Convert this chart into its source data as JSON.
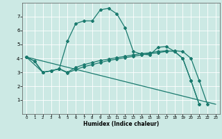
{
  "title": "",
  "xlabel": "Humidex (Indice chaleur)",
  "bg_color": "#cce9e4",
  "grid_color": "#ffffff",
  "line_color": "#1a7a6e",
  "xlim": [
    -0.5,
    23.5
  ],
  "ylim": [
    0,
    8
  ],
  "xticks": [
    0,
    1,
    2,
    3,
    4,
    5,
    6,
    7,
    8,
    9,
    10,
    11,
    12,
    13,
    14,
    15,
    16,
    17,
    18,
    19,
    20,
    21,
    22,
    23
  ],
  "yticks": [
    1,
    2,
    3,
    4,
    5,
    6,
    7
  ],
  "series1_x": [
    0,
    1,
    2,
    3,
    4,
    5,
    6,
    7,
    8,
    9,
    10,
    11,
    12,
    13,
    14,
    15,
    16,
    17,
    18,
    19,
    20,
    21,
    22,
    23
  ],
  "series1_y": [
    4.1,
    3.8,
    3.0,
    3.1,
    3.25,
    5.25,
    6.5,
    6.7,
    6.7,
    7.5,
    7.6,
    7.2,
    6.2,
    4.5,
    4.3,
    4.25,
    4.8,
    4.85,
    4.5,
    4.0,
    2.4,
    0.7,
    null,
    null
  ],
  "series2_x": [
    0,
    1,
    2,
    3,
    4,
    5,
    6,
    7,
    8,
    9,
    10,
    11,
    12,
    13,
    14,
    15,
    16,
    17,
    18,
    19,
    20,
    21,
    22,
    23
  ],
  "series2_y": [
    4.1,
    3.8,
    3.0,
    3.1,
    3.25,
    3.0,
    3.35,
    3.55,
    3.7,
    3.85,
    3.95,
    4.05,
    4.15,
    4.25,
    4.35,
    4.4,
    4.5,
    4.55,
    4.5,
    4.0,
    2.4,
    0.7,
    null,
    null
  ],
  "series3_x": [
    0,
    2,
    3,
    4,
    5,
    6,
    7,
    8,
    9,
    10,
    11,
    12,
    13,
    14,
    15,
    16,
    17,
    18,
    19,
    20,
    21,
    22,
    23
  ],
  "series3_y": [
    4.1,
    3.0,
    3.1,
    3.25,
    2.95,
    3.2,
    3.4,
    3.55,
    3.7,
    3.85,
    3.95,
    4.05,
    4.15,
    4.25,
    4.35,
    4.4,
    4.5,
    4.55,
    4.5,
    4.0,
    2.4,
    0.7,
    null
  ],
  "series4_x": [
    0,
    23
  ],
  "series4_y": [
    4.1,
    0.7
  ]
}
